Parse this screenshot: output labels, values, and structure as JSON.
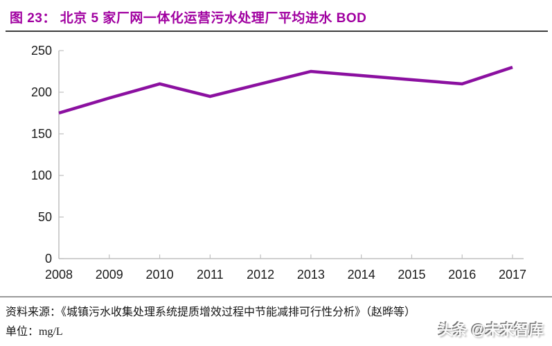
{
  "header": {
    "title": "图 23： 北京 5 家厂网一体化运营污水处理厂平均进水 BOD"
  },
  "chart_data": {
    "type": "line",
    "title": "北京 5 家厂网一体化运营污水处理厂平均进水 BOD",
    "x": [
      2008,
      2009,
      2010,
      2011,
      2012,
      2013,
      2014,
      2015,
      2016,
      2017
    ],
    "series": [
      {
        "name": "平均进水 BOD",
        "values": [
          175,
          193,
          210,
          195,
          210,
          225,
          220,
          215,
          210,
          230
        ]
      }
    ],
    "xlabel": "",
    "ylabel": "mg/L",
    "ylim": [
      0,
      250
    ],
    "yticks": [
      0,
      50,
      100,
      150,
      200,
      250
    ],
    "grid": false,
    "legend_position": "none",
    "colors": {
      "line": "#8b10a0",
      "title": "#a000a0",
      "axis": "#bfbfbf",
      "tick_label": "#1a1a1a"
    }
  },
  "footer": {
    "source": "资料来源：《城镇污水收集处理系统提质增效过程中节能减排可行性分析》（赵晔等）",
    "unit": "单位：mg/L",
    "watermark": "头条 @未来智库"
  }
}
